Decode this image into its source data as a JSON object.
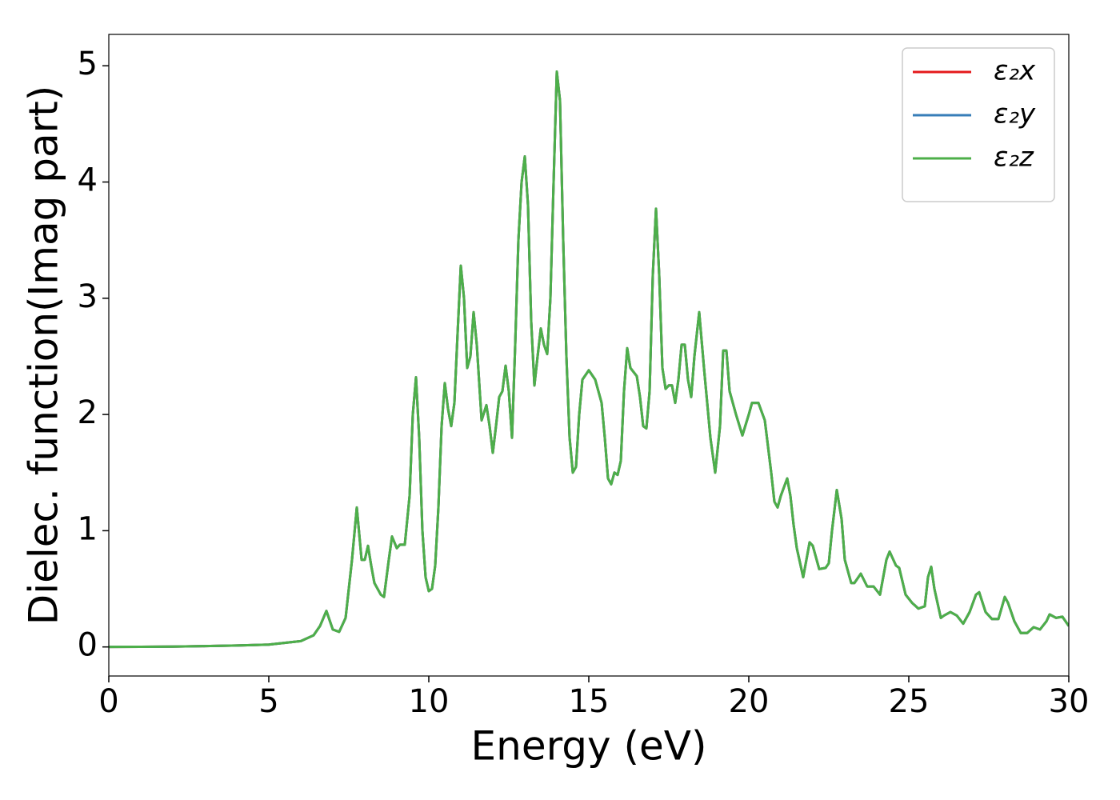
{
  "chart_data": {
    "type": "line",
    "xlabel": "Energy (eV)",
    "ylabel": "Dielec. function(Imag part)",
    "xlim": [
      0,
      30
    ],
    "ylim": [
      -0.25,
      5.27
    ],
    "xticks": [
      0,
      5,
      10,
      15,
      20,
      25,
      30
    ],
    "yticks": [
      0,
      1,
      2,
      3,
      4,
      5
    ],
    "legend": "upper right",
    "x": [
      0,
      1,
      2,
      3,
      4,
      5,
      6,
      6.4,
      6.6,
      6.8,
      7.0,
      7.2,
      7.4,
      7.6,
      7.75,
      7.9,
      8.0,
      8.1,
      8.2,
      8.3,
      8.5,
      8.6,
      8.75,
      8.85,
      9.0,
      9.1,
      9.25,
      9.4,
      9.5,
      9.6,
      9.7,
      9.8,
      9.9,
      10.0,
      10.1,
      10.2,
      10.3,
      10.4,
      10.5,
      10.6,
      10.7,
      10.8,
      10.9,
      11.0,
      11.1,
      11.2,
      11.3,
      11.4,
      11.5,
      11.65,
      11.8,
      11.9,
      12.0,
      12.1,
      12.2,
      12.3,
      12.4,
      12.5,
      12.6,
      12.7,
      12.8,
      12.9,
      13.0,
      13.1,
      13.2,
      13.3,
      13.4,
      13.5,
      13.6,
      13.7,
      13.8,
      13.9,
      14.0,
      14.1,
      14.2,
      14.3,
      14.4,
      14.5,
      14.6,
      14.7,
      14.8,
      15.0,
      15.2,
      15.4,
      15.5,
      15.6,
      15.7,
      15.8,
      15.9,
      16.0,
      16.1,
      16.2,
      16.3,
      16.5,
      16.6,
      16.7,
      16.8,
      16.9,
      17.0,
      17.1,
      17.2,
      17.3,
      17.4,
      17.5,
      17.6,
      17.7,
      17.8,
      17.9,
      18.0,
      18.1,
      18.2,
      18.3,
      18.45,
      18.6,
      18.7,
      18.8,
      18.95,
      19.1,
      19.2,
      19.3,
      19.4,
      19.6,
      19.8,
      20.0,
      20.1,
      20.3,
      20.5,
      20.7,
      20.8,
      20.9,
      21.0,
      21.2,
      21.3,
      21.4,
      21.5,
      21.7,
      21.8,
      21.9,
      22.0,
      22.2,
      22.4,
      22.5,
      22.6,
      22.75,
      22.9,
      23.0,
      23.2,
      23.3,
      23.5,
      23.7,
      23.9,
      24.1,
      24.3,
      24.4,
      24.6,
      24.7,
      24.9,
      25.1,
      25.3,
      25.5,
      25.6,
      25.7,
      25.8,
      26.0,
      26.1,
      26.3,
      26.5,
      26.7,
      26.9,
      27.1,
      27.2,
      27.4,
      27.6,
      27.8,
      28.0,
      28.1,
      28.3,
      28.5,
      28.7,
      28.9,
      29.1,
      29.3,
      29.4,
      29.6,
      29.8,
      30.0
    ],
    "series": [
      {
        "name": "ε₂x",
        "color": "#e41a1c",
        "values": [
          0,
          0.001,
          0.003,
          0.007,
          0.012,
          0.02,
          0.05,
          0.1,
          0.18,
          0.31,
          0.15,
          0.13,
          0.25,
          0.75,
          1.2,
          0.75,
          0.75,
          0.87,
          0.7,
          0.55,
          0.45,
          0.43,
          0.75,
          0.95,
          0.85,
          0.88,
          0.88,
          1.3,
          2.0,
          2.32,
          1.8,
          1.0,
          0.6,
          0.48,
          0.5,
          0.7,
          1.2,
          1.9,
          2.27,
          2.05,
          1.9,
          2.1,
          2.7,
          3.28,
          3.0,
          2.4,
          2.5,
          2.88,
          2.6,
          1.95,
          2.08,
          1.9,
          1.67,
          1.9,
          2.15,
          2.2,
          2.42,
          2.2,
          1.8,
          2.6,
          3.5,
          4.0,
          4.22,
          3.8,
          2.8,
          2.25,
          2.5,
          2.74,
          2.6,
          2.52,
          3.0,
          4.0,
          4.95,
          4.7,
          3.5,
          2.5,
          1.8,
          1.5,
          1.55,
          2.0,
          2.3,
          2.38,
          2.3,
          2.1,
          1.8,
          1.45,
          1.4,
          1.5,
          1.48,
          1.6,
          2.2,
          2.57,
          2.4,
          2.33,
          2.15,
          1.9,
          1.88,
          2.2,
          3.2,
          3.77,
          3.2,
          2.4,
          2.22,
          2.25,
          2.25,
          2.1,
          2.3,
          2.6,
          2.6,
          2.3,
          2.15,
          2.5,
          2.88,
          2.4,
          2.1,
          1.8,
          1.5,
          1.9,
          2.55,
          2.55,
          2.2,
          2.0,
          1.82,
          2.0,
          2.1,
          2.1,
          1.95,
          1.5,
          1.25,
          1.2,
          1.3,
          1.45,
          1.3,
          1.05,
          0.85,
          0.6,
          0.75,
          0.9,
          0.87,
          0.67,
          0.68,
          0.72,
          1.0,
          1.35,
          1.1,
          0.75,
          0.55,
          0.55,
          0.63,
          0.52,
          0.52,
          0.45,
          0.75,
          0.82,
          0.7,
          0.68,
          0.45,
          0.38,
          0.33,
          0.35,
          0.6,
          0.69,
          0.5,
          0.25,
          0.27,
          0.3,
          0.27,
          0.2,
          0.3,
          0.45,
          0.47,
          0.3,
          0.24,
          0.24,
          0.43,
          0.38,
          0.22,
          0.12,
          0.12,
          0.17,
          0.15,
          0.22,
          0.28,
          0.25,
          0.26,
          0.18
        ]
      },
      {
        "name": "ε₂y",
        "color": "#377eb8",
        "values": [
          0,
          0.001,
          0.003,
          0.007,
          0.012,
          0.02,
          0.05,
          0.1,
          0.18,
          0.31,
          0.15,
          0.13,
          0.25,
          0.75,
          1.2,
          0.75,
          0.75,
          0.87,
          0.7,
          0.55,
          0.45,
          0.43,
          0.75,
          0.95,
          0.85,
          0.88,
          0.88,
          1.3,
          2.0,
          2.32,
          1.8,
          1.0,
          0.6,
          0.48,
          0.5,
          0.7,
          1.2,
          1.9,
          2.27,
          2.05,
          1.9,
          2.1,
          2.7,
          3.28,
          3.0,
          2.4,
          2.5,
          2.88,
          2.6,
          1.95,
          2.08,
          1.9,
          1.67,
          1.9,
          2.15,
          2.2,
          2.42,
          2.2,
          1.8,
          2.6,
          3.5,
          4.0,
          4.22,
          3.8,
          2.8,
          2.25,
          2.5,
          2.74,
          2.6,
          2.52,
          3.0,
          4.0,
          4.95,
          4.7,
          3.5,
          2.5,
          1.8,
          1.5,
          1.55,
          2.0,
          2.3,
          2.38,
          2.3,
          2.1,
          1.8,
          1.45,
          1.4,
          1.5,
          1.48,
          1.6,
          2.2,
          2.57,
          2.4,
          2.33,
          2.15,
          1.9,
          1.88,
          2.2,
          3.2,
          3.77,
          3.2,
          2.4,
          2.22,
          2.25,
          2.25,
          2.1,
          2.3,
          2.6,
          2.6,
          2.3,
          2.15,
          2.5,
          2.88,
          2.4,
          2.1,
          1.8,
          1.5,
          1.9,
          2.55,
          2.55,
          2.2,
          2.0,
          1.82,
          2.0,
          2.1,
          2.1,
          1.95,
          1.5,
          1.25,
          1.2,
          1.3,
          1.45,
          1.3,
          1.05,
          0.85,
          0.6,
          0.75,
          0.9,
          0.87,
          0.67,
          0.68,
          0.72,
          1.0,
          1.35,
          1.1,
          0.75,
          0.55,
          0.55,
          0.63,
          0.52,
          0.52,
          0.45,
          0.75,
          0.82,
          0.7,
          0.68,
          0.45,
          0.38,
          0.33,
          0.35,
          0.6,
          0.69,
          0.5,
          0.25,
          0.27,
          0.3,
          0.27,
          0.2,
          0.3,
          0.45,
          0.47,
          0.3,
          0.24,
          0.24,
          0.43,
          0.38,
          0.22,
          0.12,
          0.12,
          0.17,
          0.15,
          0.22,
          0.28,
          0.25,
          0.26,
          0.18
        ]
      },
      {
        "name": "ε₂z",
        "color": "#4daf4a",
        "values": [
          0,
          0.001,
          0.003,
          0.007,
          0.012,
          0.02,
          0.05,
          0.1,
          0.18,
          0.31,
          0.15,
          0.13,
          0.25,
          0.75,
          1.2,
          0.75,
          0.75,
          0.87,
          0.7,
          0.55,
          0.45,
          0.43,
          0.75,
          0.95,
          0.85,
          0.88,
          0.88,
          1.3,
          2.0,
          2.32,
          1.8,
          1.0,
          0.6,
          0.48,
          0.5,
          0.7,
          1.2,
          1.9,
          2.27,
          2.05,
          1.9,
          2.1,
          2.7,
          3.28,
          3.0,
          2.4,
          2.5,
          2.88,
          2.6,
          1.95,
          2.08,
          1.9,
          1.67,
          1.9,
          2.15,
          2.2,
          2.42,
          2.2,
          1.8,
          2.6,
          3.5,
          4.0,
          4.22,
          3.8,
          2.8,
          2.25,
          2.5,
          2.74,
          2.6,
          2.52,
          3.0,
          4.0,
          4.95,
          4.7,
          3.5,
          2.5,
          1.8,
          1.5,
          1.55,
          2.0,
          2.3,
          2.38,
          2.3,
          2.1,
          1.8,
          1.45,
          1.4,
          1.5,
          1.48,
          1.6,
          2.2,
          2.57,
          2.4,
          2.33,
          2.15,
          1.9,
          1.88,
          2.2,
          3.2,
          3.77,
          3.2,
          2.4,
          2.22,
          2.25,
          2.25,
          2.1,
          2.3,
          2.6,
          2.6,
          2.3,
          2.15,
          2.5,
          2.88,
          2.4,
          2.1,
          1.8,
          1.5,
          1.9,
          2.55,
          2.55,
          2.2,
          2.0,
          1.82,
          2.0,
          2.1,
          2.1,
          1.95,
          1.5,
          1.25,
          1.2,
          1.3,
          1.45,
          1.3,
          1.05,
          0.85,
          0.6,
          0.75,
          0.9,
          0.87,
          0.67,
          0.68,
          0.72,
          1.0,
          1.35,
          1.1,
          0.75,
          0.55,
          0.55,
          0.63,
          0.52,
          0.52,
          0.45,
          0.75,
          0.82,
          0.7,
          0.68,
          0.45,
          0.38,
          0.33,
          0.35,
          0.6,
          0.69,
          0.5,
          0.25,
          0.27,
          0.3,
          0.27,
          0.2,
          0.3,
          0.45,
          0.47,
          0.3,
          0.24,
          0.24,
          0.43,
          0.38,
          0.22,
          0.12,
          0.12,
          0.17,
          0.15,
          0.22,
          0.28,
          0.25,
          0.26,
          0.18
        ]
      }
    ]
  }
}
